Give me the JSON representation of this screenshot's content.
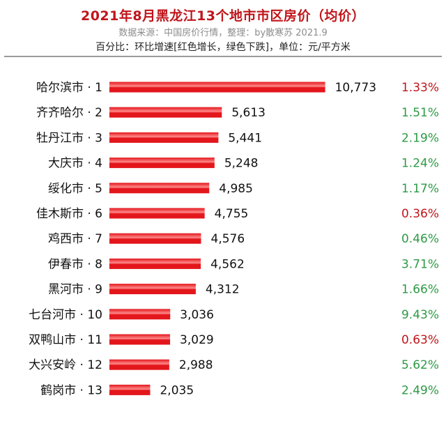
{
  "header": {
    "title": "2021年8月黑龙江13个地市市区房价（均价）",
    "subtitle": "数据来源：中国房价行情，整理：by散寒苏 2021.9",
    "note": "百分比：环比增速[红色增长，绿色下跌]，单位：元/平方米"
  },
  "colors": {
    "bar": "#e3161c",
    "bar_highlight": "#ff8a8a",
    "increase": "#c0151b",
    "decrease": "#2e9a45"
  },
  "chart_data": {
    "type": "bar",
    "orientation": "horizontal",
    "title": "2021年8月黑龙江13个地市市区房价（均价）",
    "unit": "元/平方米",
    "categories": [
      "哈尔滨市 · 1",
      "齐齐哈尔 · 2",
      "牡丹江市 · 3",
      "大庆市 · 4",
      "绥化市 · 5",
      "佳木斯市 · 6",
      "鸡西市 · 7",
      "伊春市 · 8",
      "黑河市 · 9",
      "七台河市 · 10",
      "双鸭山市 · 11",
      "大兴安岭 · 12",
      "鹤岗市 · 13"
    ],
    "values": [
      10773,
      5613,
      5441,
      5248,
      4985,
      4755,
      4576,
      4562,
      4312,
      3036,
      3029,
      2988,
      2035
    ],
    "value_labels": [
      "10,773",
      "5,613",
      "5,441",
      "5,248",
      "4,985",
      "4,755",
      "4,576",
      "4,562",
      "4,312",
      "3,036",
      "3,029",
      "2,988",
      "2,035"
    ],
    "mom_change": [
      "1.33%",
      "1.51%",
      "2.19%",
      "1.24%",
      "1.17%",
      "0.36%",
      "0.46%",
      "3.71%",
      "1.66%",
      "9.43%",
      "0.63%",
      "5.62%",
      "2.49%"
    ],
    "mom_direction": [
      "up",
      "down",
      "down",
      "down",
      "down",
      "up",
      "down",
      "down",
      "down",
      "down",
      "up",
      "down",
      "down"
    ],
    "grid": false,
    "legend": "none"
  }
}
